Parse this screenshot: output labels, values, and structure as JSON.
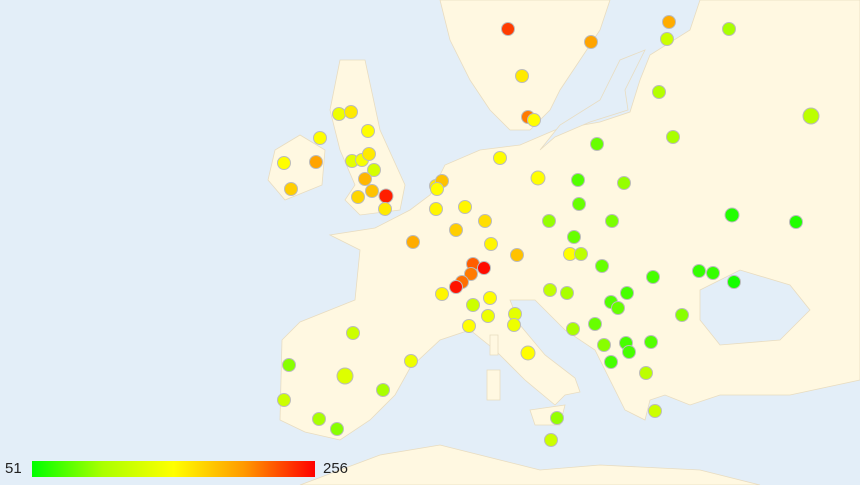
{
  "legend": {
    "min": 51,
    "max": 256,
    "colors": [
      "#00ff00",
      "#aaff00",
      "#ffff00",
      "#ff9900",
      "#ff0000"
    ]
  },
  "points": [
    236,
    199,
    195,
    123,
    102,
    164,
    215,
    154,
    108,
    113,
    102,
    82,
    143,
    164,
    154,
    154,
    154,
    199,
    178,
    137,
    149,
    164,
    129,
    190,
    184,
    174,
    246,
    164,
    164,
    184,
    154,
    154,
    154,
    76,
    96,
    82,
    158,
    158,
    170,
    96,
    88,
    61,
    61,
    195,
    178,
    158,
    82,
    154,
    113,
    184,
    225,
    252,
    215,
    219,
    250,
    82,
    72,
    67,
    67,
    57,
    158,
    154,
    123,
    117,
    102,
    76,
    72,
    82,
    92,
    123,
    154,
    143,
    137,
    143,
    154,
    102,
    82,
    92,
    72,
    72,
    76,
    72,
    92,
    133,
    143,
    102,
    123,
    113,
    102,
    92,
    96,
    123,
    123
  ]
}
